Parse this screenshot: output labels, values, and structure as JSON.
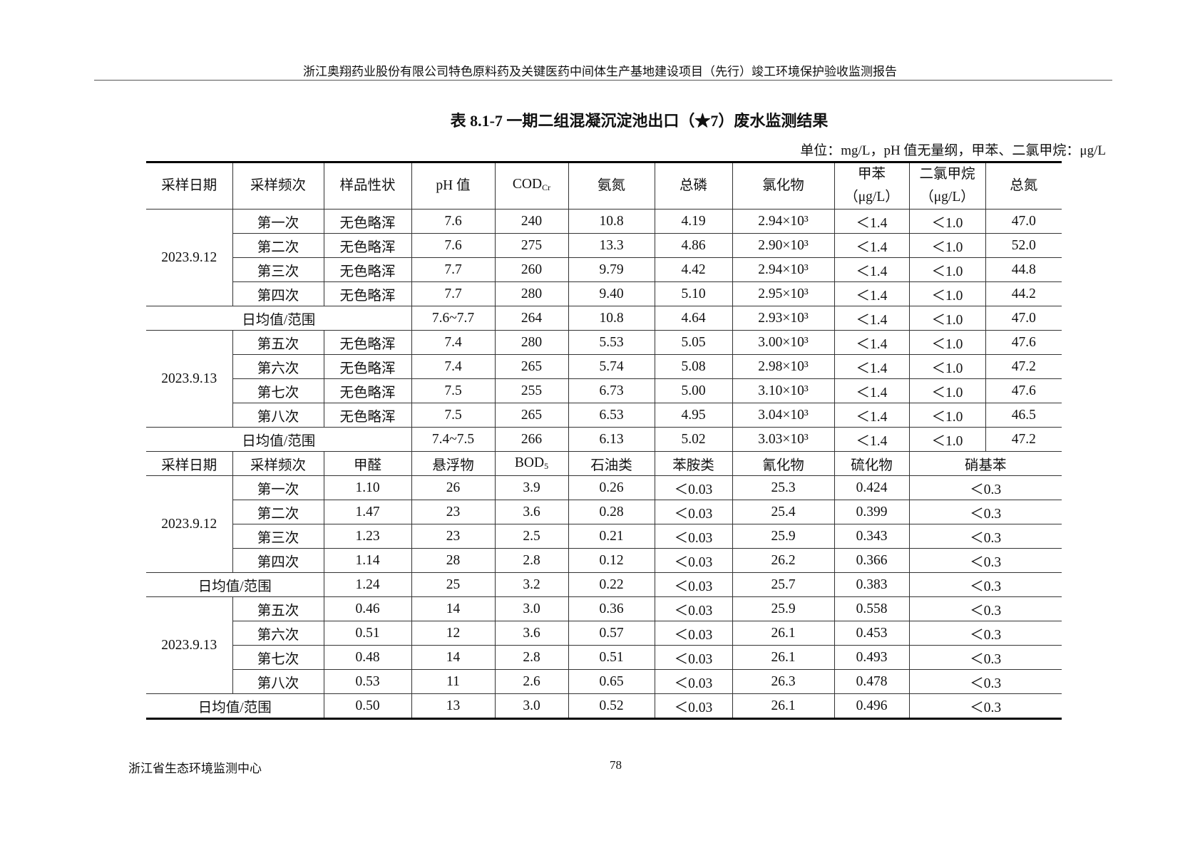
{
  "header": "浙江奥翔药业股份有限公司特色原料药及关键医药中间体生产基地建设项目（先行）竣工环境保护验收监测报告",
  "title": "表 8.1-7  一期二组混凝沉淀池出口（★7）废水监测结果",
  "unit": "单位：mg/L，pH 值无量纲，甲苯、二氯甲烷：μg/L",
  "table1": {
    "headers": [
      "采样日期",
      "采样频次",
      "样品性状",
      "pH 值",
      "COD",
      "氨氮",
      "总磷",
      "氯化物",
      "甲苯\n（μg/L）",
      "二氯甲烷\n（μg/L）",
      "总氮"
    ],
    "cod_sub": "Cr",
    "groups": [
      {
        "date": "2023.9.12",
        "rows": [
          [
            "第一次",
            "无色略浑",
            "7.6",
            "240",
            "10.8",
            "4.19",
            "2.94×10³",
            "＜1.4",
            "＜1.0",
            "47.0"
          ],
          [
            "第二次",
            "无色略浑",
            "7.6",
            "275",
            "13.3",
            "4.86",
            "2.90×10³",
            "＜1.4",
            "＜1.0",
            "52.0"
          ],
          [
            "第三次",
            "无色略浑",
            "7.7",
            "260",
            "9.79",
            "4.42",
            "2.94×10³",
            "＜1.4",
            "＜1.0",
            "44.8"
          ],
          [
            "第四次",
            "无色略浑",
            "7.7",
            "280",
            "9.40",
            "5.10",
            "2.95×10³",
            "＜1.4",
            "＜1.0",
            "44.2"
          ]
        ],
        "avg": [
          "日均值/范围",
          "7.6~7.7",
          "264",
          "10.8",
          "4.64",
          "2.93×10³",
          "＜1.4",
          "＜1.0",
          "47.0"
        ]
      },
      {
        "date": "2023.9.13",
        "rows": [
          [
            "第五次",
            "无色略浑",
            "7.4",
            "280",
            "5.53",
            "5.05",
            "3.00×10³",
            "＜1.4",
            "＜1.0",
            "47.6"
          ],
          [
            "第六次",
            "无色略浑",
            "7.4",
            "265",
            "5.74",
            "5.08",
            "2.98×10³",
            "＜1.4",
            "＜1.0",
            "47.2"
          ],
          [
            "第七次",
            "无色略浑",
            "7.5",
            "255",
            "6.73",
            "5.00",
            "3.10×10³",
            "＜1.4",
            "＜1.0",
            "47.6"
          ],
          [
            "第八次",
            "无色略浑",
            "7.5",
            "265",
            "6.53",
            "4.95",
            "3.04×10³",
            "＜1.4",
            "＜1.0",
            "46.5"
          ]
        ],
        "avg": [
          "日均值/范围",
          "7.4~7.5",
          "266",
          "6.13",
          "5.02",
          "3.03×10³",
          "＜1.4",
          "＜1.0",
          "47.2"
        ]
      }
    ]
  },
  "table2": {
    "headers": [
      "采样日期",
      "采样频次",
      "甲醛",
      "悬浮物",
      "BOD",
      "石油类",
      "苯胺类",
      "氰化物",
      "硫化物",
      "硝基苯"
    ],
    "bod_sub": "5",
    "groups": [
      {
        "date": "2023.9.12",
        "rows": [
          [
            "第一次",
            "1.10",
            "26",
            "3.9",
            "0.26",
            "＜0.03",
            "25.3",
            "0.424",
            "＜0.3"
          ],
          [
            "第二次",
            "1.47",
            "23",
            "3.6",
            "0.28",
            "＜0.03",
            "25.4",
            "0.399",
            "＜0.3"
          ],
          [
            "第三次",
            "1.23",
            "23",
            "2.5",
            "0.21",
            "＜0.03",
            "25.9",
            "0.343",
            "＜0.3"
          ],
          [
            "第四次",
            "1.14",
            "28",
            "2.8",
            "0.12",
            "＜0.03",
            "26.2",
            "0.366",
            "＜0.3"
          ]
        ],
        "avg": [
          "日均值/范围",
          "1.24",
          "25",
          "3.2",
          "0.22",
          "＜0.03",
          "25.7",
          "0.383",
          "＜0.3"
        ]
      },
      {
        "date": "2023.9.13",
        "rows": [
          [
            "第五次",
            "0.46",
            "14",
            "3.0",
            "0.36",
            "＜0.03",
            "25.9",
            "0.558",
            "＜0.3"
          ],
          [
            "第六次",
            "0.51",
            "12",
            "3.6",
            "0.57",
            "＜0.03",
            "26.1",
            "0.453",
            "＜0.3"
          ],
          [
            "第七次",
            "0.48",
            "14",
            "2.8",
            "0.51",
            "＜0.03",
            "26.1",
            "0.493",
            "＜0.3"
          ],
          [
            "第八次",
            "0.53",
            "11",
            "2.6",
            "0.65",
            "＜0.03",
            "26.3",
            "0.478",
            "＜0.3"
          ]
        ],
        "avg": [
          "日均值/范围",
          "0.50",
          "13",
          "3.0",
          "0.52",
          "＜0.03",
          "26.1",
          "0.496",
          "＜0.3"
        ]
      }
    ]
  },
  "footer": {
    "org": "浙江省生态环境监测中心",
    "page": "78"
  }
}
